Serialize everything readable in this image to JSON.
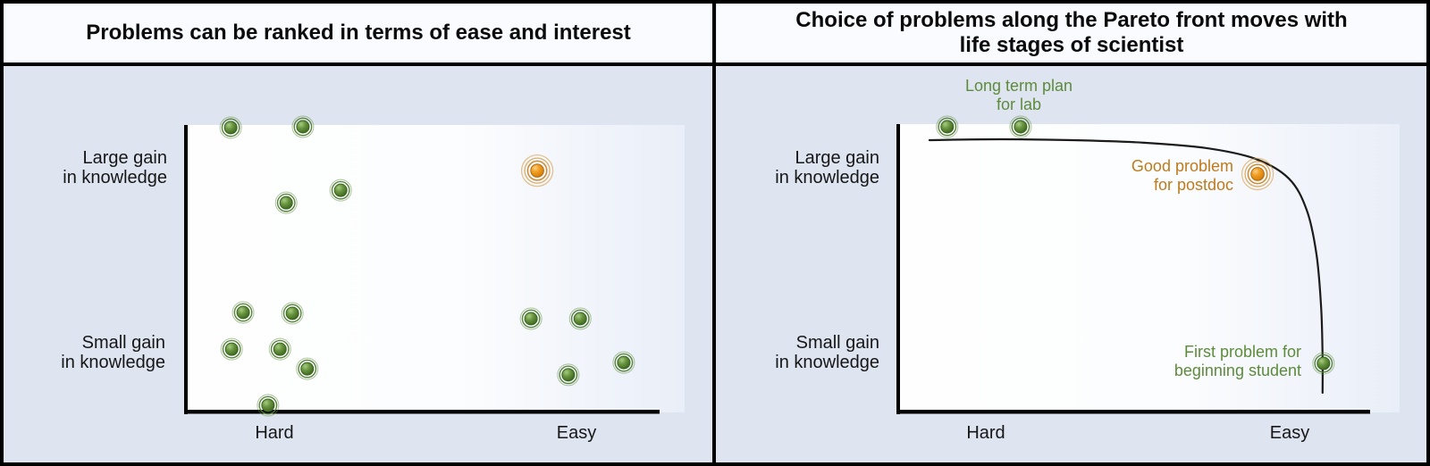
{
  "left_panel": {
    "title": "Problems can be ranked in terms of ease and interest",
    "y_label_top_line1": "Large gain",
    "y_label_top_line2": "in knowledge",
    "y_label_bottom_line1": "Small gain",
    "y_label_bottom_line2": "in knowledge",
    "x_label_left": "Hard",
    "x_label_right": "Easy"
  },
  "right_panel": {
    "title_line1": "Choice of problems along the Pareto front moves with",
    "title_line2": "life stages of scientist",
    "y_label_top_line1": "Large gain",
    "y_label_top_line2": "in knowledge",
    "y_label_bottom_line1": "Small gain",
    "y_label_bottom_line2": "in knowledge",
    "x_label_left": "Hard",
    "x_label_right": "Easy",
    "annotations": {
      "long_term": {
        "line1": "Long term plan",
        "line2": "for lab"
      },
      "good_problem": {
        "line1": "Good problem",
        "line2": "for postdoc"
      },
      "first_problem": {
        "line1": "First problem for",
        "line2": "beginning student"
      }
    }
  },
  "colors": {
    "background": "#dee5f1",
    "title_bar": "#fafbfe",
    "border": "#000000",
    "green_dot": "#4e7c31",
    "green_ring": "#5d8b3b",
    "orange_dot": "#ee9115",
    "orange_ring": "#d39434",
    "green_text": "#5d8b3b",
    "orange_text": "#bd7b1d",
    "curve": "#1b1b1b"
  },
  "chart_data": [
    {
      "type": "scatter",
      "panel": "left",
      "title": "Problems can be ranked in terms of ease and interest",
      "xlabel": "",
      "ylabel": "",
      "x_tick_labels": [
        "Hard",
        "Easy"
      ],
      "y_tick_labels": [
        "Small gain in knowledge",
        "Large gain in knowledge"
      ],
      "x_range": [
        0,
        1
      ],
      "y_range": [
        0,
        1
      ],
      "grid": false,
      "points": [
        {
          "x": 0.09,
          "y": 0.997,
          "style": "green"
        },
        {
          "x": 0.241,
          "y": 1.0,
          "style": "green"
        },
        {
          "x": 0.32,
          "y": 0.777,
          "style": "green"
        },
        {
          "x": 0.206,
          "y": 0.733,
          "style": "green"
        },
        {
          "x": 0.731,
          "y": 0.846,
          "style": "orange-target"
        },
        {
          "x": 0.116,
          "y": 0.348,
          "style": "green"
        },
        {
          "x": 0.219,
          "y": 0.345,
          "style": "green"
        },
        {
          "x": 0.092,
          "y": 0.219,
          "style": "green"
        },
        {
          "x": 0.193,
          "y": 0.219,
          "style": "green"
        },
        {
          "x": 0.25,
          "y": 0.15,
          "style": "green"
        },
        {
          "x": 0.168,
          "y": 0.022,
          "style": "green"
        },
        {
          "x": 0.718,
          "y": 0.326,
          "style": "green"
        },
        {
          "x": 0.821,
          "y": 0.326,
          "style": "green"
        },
        {
          "x": 0.796,
          "y": 0.129,
          "style": "green"
        },
        {
          "x": 0.912,
          "y": 0.172,
          "style": "green"
        }
      ]
    },
    {
      "type": "line+scatter",
      "panel": "right",
      "title": "Choice of problems along the Pareto front moves with life stages of scientist",
      "xlabel": "",
      "ylabel": "",
      "x_tick_labels": [
        "Hard",
        "Easy"
      ],
      "y_tick_labels": [
        "Small gain in knowledge",
        "Large gain in knowledge"
      ],
      "x_range": [
        0,
        1
      ],
      "y_range": [
        0,
        1
      ],
      "grid": false,
      "curve_name": "Pareto front",
      "curve": [
        [
          0.063,
          0.953
        ],
        [
          0.216,
          0.956
        ],
        [
          0.369,
          0.953
        ],
        [
          0.522,
          0.944
        ],
        [
          0.656,
          0.925
        ],
        [
          0.761,
          0.887
        ],
        [
          0.832,
          0.818
        ],
        [
          0.87,
          0.708
        ],
        [
          0.891,
          0.552
        ],
        [
          0.901,
          0.364
        ],
        [
          0.904,
          0.191
        ],
        [
          0.904,
          0.066
        ]
      ],
      "points": [
        {
          "x": 0.101,
          "y": 1.0,
          "style": "green",
          "label": "Long term plan for lab"
        },
        {
          "x": 0.258,
          "y": 1.0,
          "style": "green",
          "label": "Long term plan for lab"
        },
        {
          "x": 0.765,
          "y": 0.834,
          "style": "orange-target",
          "label": "Good problem for postdoc"
        },
        {
          "x": 0.906,
          "y": 0.169,
          "style": "green",
          "label": "First problem for beginning student"
        }
      ]
    }
  ]
}
